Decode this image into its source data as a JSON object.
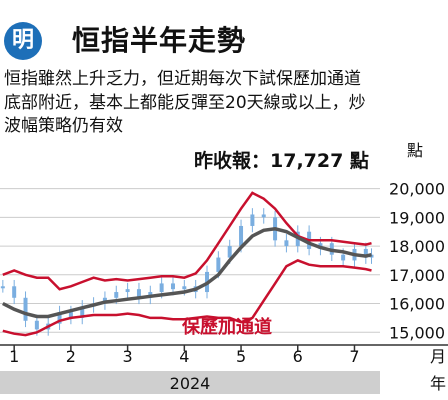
{
  "header": {
    "logo_char": "明",
    "title": "恒指半年走勢"
  },
  "description": "恒指雖然上升乏力，但近期每次下試保歷加通道\n底部附近，基本上都能反彈至20天線或以上，炒\n波幅策略仍有效",
  "colors": {
    "band": "#c8102e",
    "ma": "#555555",
    "candle": "#7aaee0",
    "grid": "#cccccc",
    "year_bar": "#cfcfcf"
  },
  "chart_data": {
    "type": "line",
    "annotation_close": "昨收報：17,727 點",
    "band_label": "保歷加通道",
    "y_unit": "點",
    "ylim": [
      14800,
      20300
    ],
    "y_ticks": [
      15000,
      16000,
      17000,
      18000,
      19000,
      20000
    ],
    "y_tick_labels": [
      "15,000",
      "16,000",
      "17,000",
      "18,000",
      "19,000",
      "20,000"
    ],
    "x_unit": "月",
    "year_label": "2024",
    "year_suffix": "年",
    "xlim": [
      0.75,
      7.45
    ],
    "month_ticks": [
      1,
      2,
      3,
      4,
      5,
      6,
      7
    ],
    "month_labels": [
      "1",
      "2",
      "3",
      "4",
      "5",
      "6",
      "7"
    ],
    "x": [
      0.8,
      1.0,
      1.2,
      1.4,
      1.6,
      1.8,
      2.0,
      2.2,
      2.4,
      2.6,
      2.8,
      3.0,
      3.2,
      3.4,
      3.6,
      3.8,
      4.0,
      4.2,
      4.4,
      4.6,
      4.8,
      5.0,
      5.2,
      5.4,
      5.6,
      5.8,
      6.0,
      6.2,
      6.4,
      6.6,
      6.8,
      7.0,
      7.2,
      7.3
    ],
    "series": [
      {
        "name": "",
        "role": "upper_band",
        "values": [
          17000,
          17150,
          17000,
          16900,
          16900,
          16500,
          16600,
          16750,
          16900,
          16800,
          16850,
          16800,
          16850,
          16900,
          16950,
          16950,
          16900,
          17050,
          17500,
          18100,
          18700,
          19300,
          19850,
          19650,
          19300,
          18800,
          18350,
          18200,
          18200,
          18200,
          18150,
          18100,
          18050,
          18100
        ]
      },
      {
        "name": "",
        "role": "moving_average",
        "values": [
          16000,
          15800,
          15650,
          15550,
          15550,
          15650,
          15750,
          15850,
          15950,
          16050,
          16100,
          16150,
          16200,
          16250,
          16300,
          16350,
          16400,
          16500,
          16700,
          17000,
          17500,
          17950,
          18350,
          18550,
          18600,
          18500,
          18300,
          18100,
          17950,
          17850,
          17800,
          17700,
          17650,
          17700
        ]
      },
      {
        "name": "",
        "role": "lower_band",
        "values": [
          15050,
          14950,
          14900,
          15000,
          15200,
          15400,
          15500,
          15550,
          15600,
          15600,
          15600,
          15650,
          15600,
          15500,
          15500,
          15450,
          15450,
          15500,
          15550,
          15500,
          15500,
          15350,
          15500,
          16100,
          16700,
          17300,
          17500,
          17350,
          17300,
          17300,
          17300,
          17250,
          17200,
          17150
        ]
      },
      {
        "name": "",
        "role": "daily_close",
        "values": [
          16600,
          16200,
          15400,
          15100,
          15300,
          15700,
          15500,
          15900,
          16000,
          16200,
          16400,
          16500,
          16200,
          16400,
          16700,
          16500,
          16600,
          16400,
          17100,
          17600,
          18000,
          18700,
          19100,
          19000,
          18200,
          18000,
          18500,
          17900,
          18100,
          17700,
          17500,
          17900,
          17600,
          17700
        ]
      }
    ]
  }
}
